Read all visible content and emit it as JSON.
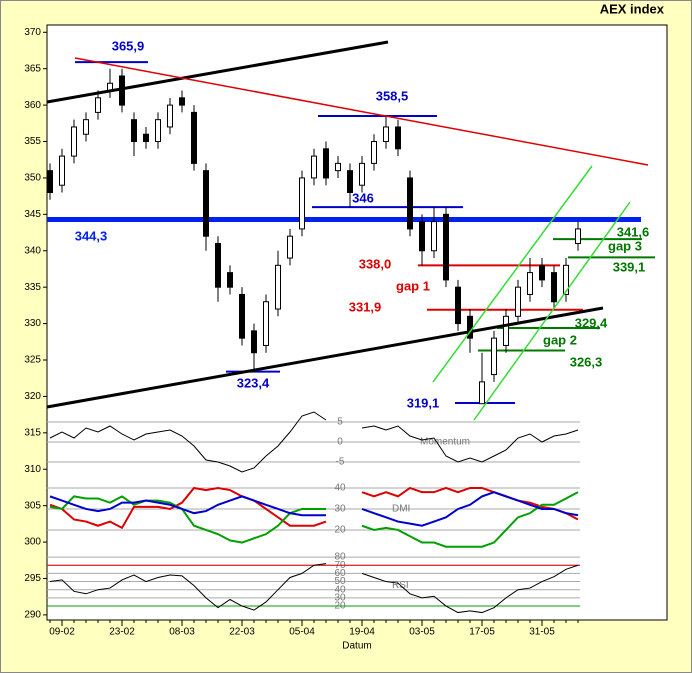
{
  "chart_data": {
    "type": "candlestick",
    "title": "AEX index",
    "x_label": "Datum",
    "categories": [
      null,
      "09-02",
      null,
      null,
      null,
      null,
      "23-02",
      null,
      null,
      null,
      null,
      "08-03",
      null,
      null,
      null,
      null,
      "22-03",
      null,
      null,
      null,
      null,
      "05-04",
      null,
      null,
      null,
      null,
      "19-04",
      null,
      null,
      null,
      null,
      "03-05",
      null,
      null,
      null,
      null,
      "17-05",
      null,
      null,
      null,
      null,
      "31-05",
      null,
      null,
      null
    ],
    "open": [
      351,
      349,
      353,
      356,
      359,
      362,
      364,
      358,
      356,
      355,
      357,
      361,
      359,
      351,
      341,
      337,
      334,
      329,
      327,
      332,
      339,
      343,
      350,
      354,
      351,
      351,
      349,
      352,
      355,
      357,
      350,
      344,
      340,
      345,
      335,
      331,
      319,
      323,
      327,
      331,
      334,
      338,
      337,
      334,
      341
    ],
    "high": [
      352,
      354,
      358,
      359,
      362,
      365,
      365,
      359,
      357,
      359,
      361,
      362,
      360,
      352,
      342,
      338,
      335,
      330,
      334,
      340,
      343,
      351,
      354,
      355,
      353,
      352,
      353,
      356,
      358.5,
      358,
      351,
      345,
      346,
      346,
      336,
      332,
      326,
      329,
      332,
      336,
      339,
      339,
      338,
      339,
      344
    ],
    "low": [
      347,
      348,
      352,
      355,
      358,
      361,
      359,
      353,
      354,
      354,
      356,
      359,
      351,
      340,
      333,
      334,
      327,
      323.4,
      326,
      331,
      338,
      342,
      349,
      349,
      350,
      346,
      348,
      351,
      354,
      353,
      342,
      338,
      339,
      335,
      329,
      326,
      319.1,
      322,
      326,
      330,
      333,
      335,
      332,
      333,
      340
    ],
    "close": [
      348,
      353,
      357,
      358,
      361,
      363,
      360,
      355,
      355,
      358,
      360,
      360,
      352,
      342,
      335,
      335,
      328,
      326,
      333,
      338,
      342,
      350,
      353,
      350,
      352,
      348,
      352,
      355,
      357,
      354,
      343,
      340,
      344,
      336,
      330,
      328,
      322,
      328,
      331,
      335,
      337,
      336,
      333,
      338,
      343
    ],
    "ylim": [
      289.3,
      371
    ],
    "yticks": [
      290,
      295,
      300,
      305,
      310,
      315,
      320,
      325,
      330,
      335,
      340,
      345,
      350,
      355,
      360,
      365,
      370
    ],
    "annotations": [
      {
        "label": "365,9",
        "value": 365.9,
        "color": "#0000cc"
      },
      {
        "label": "358,5",
        "value": 358.5,
        "color": "#0000cc"
      },
      {
        "label": "346",
        "value": 346,
        "color": "#0000cc"
      },
      {
        "label": "344,3",
        "value": 344.3,
        "color": "#0022ee"
      },
      {
        "label": "323,4",
        "value": 323.4,
        "color": "#0000cc"
      },
      {
        "label": "319,1",
        "value": 319.1,
        "color": "#0000cc"
      },
      {
        "label": "338,0",
        "value": 338,
        "color": "#dd0000"
      },
      {
        "label": "331,9",
        "value": 331.9,
        "color": "#dd0000"
      },
      {
        "label": "341,6",
        "value": 341.6,
        "color": "#007700"
      },
      {
        "label": "339,1",
        "value": 339.1,
        "color": "#007700"
      },
      {
        "label": "329,4",
        "value": 329.4,
        "color": "#007700"
      },
      {
        "label": "326,3",
        "value": 326.3,
        "color": "#007700"
      }
    ],
    "notes": [
      {
        "label": "gap 1",
        "color": "#dd0000"
      },
      {
        "label": "gap 3",
        "color": "#007700"
      },
      {
        "label": "gap 2",
        "color": "#007700"
      }
    ],
    "indicators": [
      {
        "name": "Momentum",
        "ylim": [
          -9,
          7.5
        ],
        "yticks": [
          5,
          0,
          -5
        ],
        "series": [
          {
            "color": "#000000",
            "values": [
              1,
              2.5,
              1,
              3.5,
              2.5,
              4,
              2,
              0.5,
              2,
              2.5,
              3,
              1.5,
              -1,
              -4.5,
              -5,
              -6,
              -7.5,
              -6.5,
              -3.5,
              -1,
              2.5,
              6.5,
              7.5,
              5.5,
              null,
              null,
              3.5,
              4,
              3,
              4,
              1.5,
              0.5,
              1,
              -3.5,
              -5,
              -4,
              -5,
              -3.5,
              -2,
              1,
              2,
              0,
              1.5,
              2,
              3
            ]
          }
        ]
      },
      {
        "name": "DMI",
        "ylim": [
          11.4,
          43.8
        ],
        "yticks": [
          40,
          30,
          20
        ],
        "series": [
          {
            "color": "#dd0000",
            "values": [
              32,
              30,
              25,
              24,
              22,
              24,
              21,
              31,
              31,
              31,
              30,
              33,
              40,
              39,
              40,
              39,
              36,
              34,
              30,
              26,
              22,
              22,
              22,
              24,
              null,
              null,
              38,
              36,
              38,
              36,
              40,
              38,
              38,
              40,
              38,
              40,
              40,
              38,
              36,
              34,
              33,
              31,
              30,
              28,
              25
            ]
          },
          {
            "color": "#00a000",
            "values": [
              31,
              30,
              36,
              35,
              35,
              33,
              36,
              32,
              34,
              34,
              33,
              30,
              22,
              20,
              18,
              15,
              14,
              16,
              18,
              22,
              28,
              30,
              30,
              30,
              null,
              null,
              22,
              20,
              21,
              20,
              17,
              14,
              14,
              12,
              12,
              12,
              12,
              14,
              20,
              26,
              28,
              32,
              32,
              35,
              38
            ]
          },
          {
            "color": "#0000cc",
            "values": [
              36,
              34,
              32,
              30,
              29,
              30,
              33,
              33,
              34,
              33,
              32,
              30,
              28,
              29,
              32,
              34,
              36,
              34,
              32,
              30,
              28,
              27,
              27,
              27,
              null,
              null,
              30,
              28,
              26,
              24,
              23,
              22,
              24,
              26,
              30,
              32,
              36,
              38,
              36,
              34,
              32,
              30,
              30,
              28,
              27
            ]
          }
        ]
      },
      {
        "name": "RSI",
        "ylim": [
          9,
          85
        ],
        "yticks": [
          80,
          70,
          60,
          50,
          40,
          30,
          20
        ],
        "bands": [
          {
            "value": 70,
            "color": "#dd0000"
          },
          {
            "value": 20,
            "color": "#00a000"
          }
        ],
        "series": [
          {
            "color": "#000000",
            "values": [
              50,
              52,
              38,
              35,
              40,
              42,
              52,
              58,
              50,
              55,
              58,
              57,
              45,
              30,
              18,
              28,
              20,
              15,
              25,
              40,
              55,
              60,
              70,
              72,
              null,
              null,
              60,
              55,
              50,
              48,
              35,
              30,
              32,
              20,
              12,
              14,
              12,
              18,
              30,
              40,
              42,
              50,
              56,
              65,
              70
            ]
          }
        ]
      }
    ]
  }
}
